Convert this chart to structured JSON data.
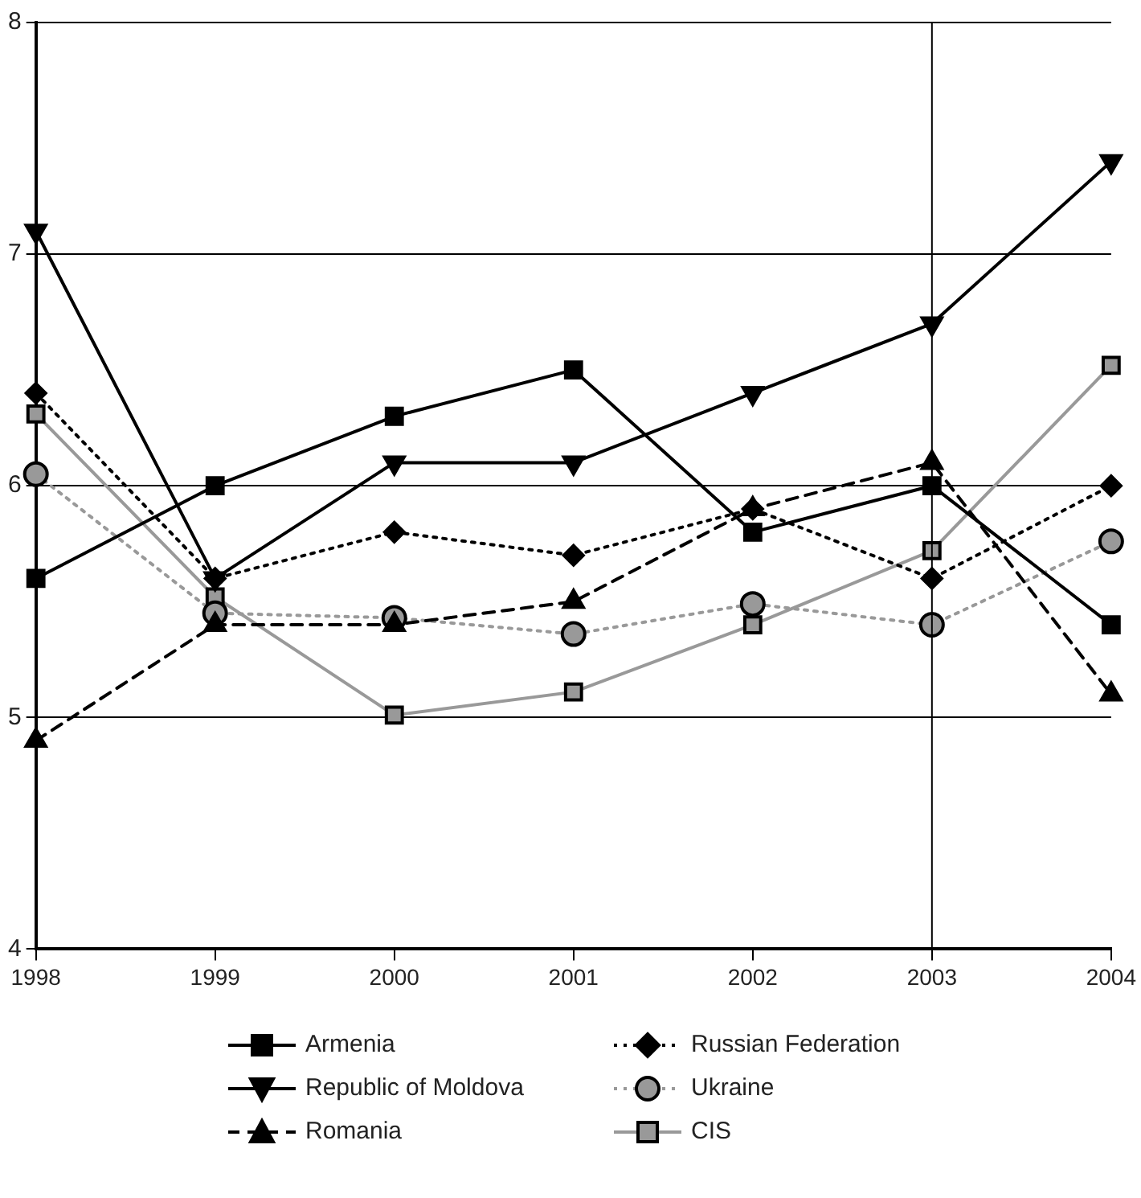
{
  "chart_data": {
    "type": "line",
    "x": [
      1998,
      1999,
      2000,
      2001,
      2002,
      2003,
      2004
    ],
    "xlim": [
      1998,
      2004
    ],
    "xticks": [
      1998,
      1999,
      2000,
      2001,
      2002,
      2003,
      2004
    ],
    "ylim": [
      4,
      8
    ],
    "yticks": [
      4,
      5,
      6,
      7,
      8
    ],
    "grid": "y",
    "legend": "bottom",
    "ref_lines": [
      {
        "axis": "x",
        "value": 2003,
        "color": "#000000"
      }
    ],
    "series": [
      {
        "name": "Armenia",
        "color": "#000000",
        "marker": "square",
        "line_style": "solid",
        "values": [
          5.6,
          6.0,
          6.3,
          6.5,
          5.8,
          6.0,
          5.4
        ]
      },
      {
        "name": "Republic of Moldova",
        "color": "#000000",
        "marker": "triangle-down",
        "line_style": "solid",
        "values": [
          7.1,
          5.6,
          6.1,
          6.1,
          6.4,
          6.7,
          7.4
        ]
      },
      {
        "name": "Romania",
        "color": "#000000",
        "marker": "triangle",
        "line_style": "dashed",
        "values": [
          4.9,
          5.4,
          5.4,
          5.5,
          5.9,
          6.1,
          5.1
        ]
      },
      {
        "name": "Russian Federation",
        "color": "#000000",
        "marker": "diamond",
        "line_style": "dotted",
        "values": [
          6.4,
          5.6,
          5.8,
          5.7,
          5.9,
          5.6,
          6.0
        ]
      },
      {
        "name": "Ukraine",
        "color": "#999999",
        "marker": "circle",
        "line_style": "dotted",
        "values": [
          6.05,
          5.45,
          5.43,
          5.36,
          5.49,
          5.4,
          5.76
        ]
      },
      {
        "name": "CIS",
        "color": "#999999",
        "marker": "square",
        "line_style": "solid",
        "values": [
          6.31,
          5.52,
          5.01,
          5.11,
          5.4,
          5.72,
          6.52
        ]
      }
    ]
  }
}
